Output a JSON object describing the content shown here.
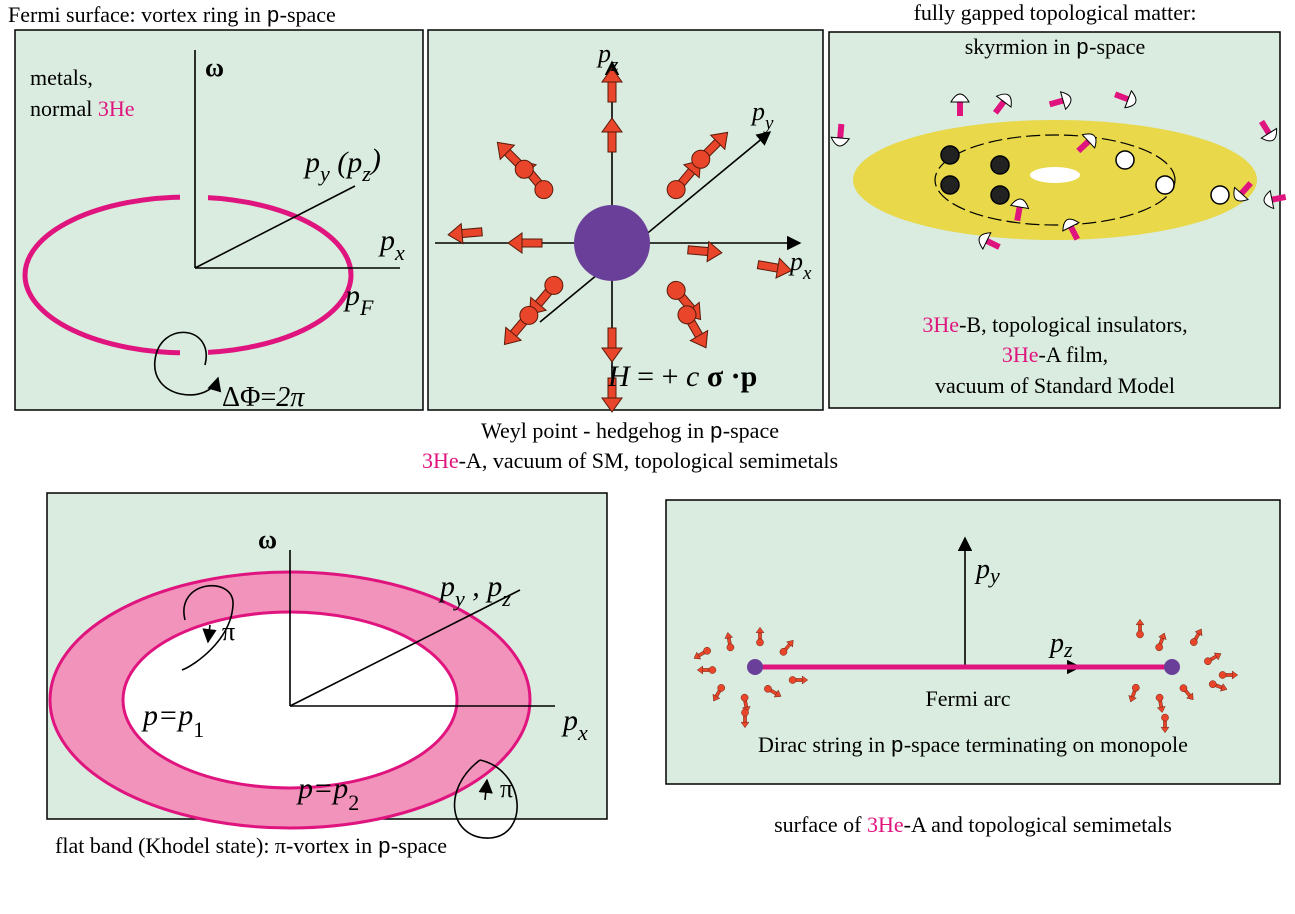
{
  "fermi_surface": {
    "caption": [
      "Fermi surface: vortex ring in ",
      "p",
      "-space"
    ],
    "note_line1": "metals,",
    "note_line2": [
      "normal ",
      "3He"
    ],
    "omega": "ω",
    "py_pz": [
      "p",
      "y",
      " (",
      "p",
      "z",
      ")"
    ],
    "px": [
      "p",
      "x"
    ],
    "pF": [
      "p",
      "F"
    ],
    "phase": [
      "ΔΦ=",
      "2π"
    ]
  },
  "weyl_point": {
    "pz": [
      "p",
      "z"
    ],
    "py": [
      "p",
      "y"
    ],
    "px": [
      "p",
      "x"
    ],
    "hamiltonian": [
      "H",
      " = + ",
      "c",
      " σ ·",
      "p"
    ],
    "caption": [
      "Weyl point - hedgehog in ",
      "p",
      "-space"
    ],
    "subcaption": [
      "3He",
      "-A, vacuum of SM, topological semimetals"
    ]
  },
  "skyrmion": {
    "caption_line1": "fully gapped topological matter:",
    "caption_line2": [
      "skyrmion in ",
      "p",
      "-space"
    ],
    "examples_line1": [
      "3He",
      "-B, topological insulators,"
    ],
    "examples_line2": [
      "3He",
      "-A film,"
    ],
    "examples_line3": "vacuum of Standard Model"
  },
  "flat_band": {
    "omega": "ω",
    "py_pz": [
      "p",
      "y",
      " , ",
      "p",
      "z"
    ],
    "pi_upper": "π",
    "pi_lower": "π",
    "p1": [
      "p=p",
      "1"
    ],
    "p2": [
      "p=p",
      "2"
    ],
    "px": [
      "p",
      "x"
    ],
    "caption": [
      "flat band (Khodel state): π-vortex in ",
      "p",
      "-space"
    ]
  },
  "fermi_arc": {
    "py": [
      "p",
      "y"
    ],
    "pz": [
      "p",
      "z"
    ],
    "arc_label": "Fermi arc",
    "description": [
      "Dirac string in ",
      "p",
      "-space terminating on monopole"
    ],
    "caption": [
      "surface of ",
      "3He",
      "-A and topological semimetals"
    ]
  }
}
